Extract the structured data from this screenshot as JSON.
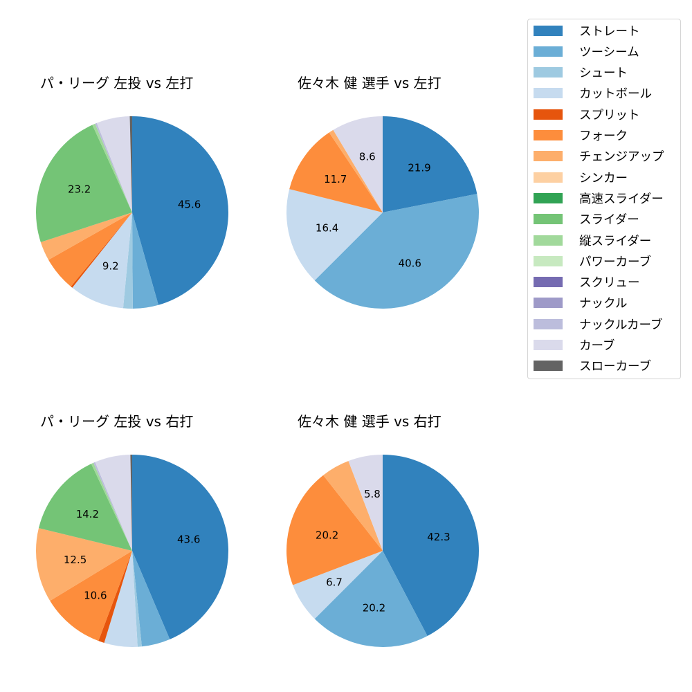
{
  "titles": {
    "c1": "パ・リーグ 左投 vs 左打",
    "c2": "佐々木 健 選手 vs 左打",
    "c3": "パ・リーグ 左投 vs 右打",
    "c4": "佐々木 健 選手 vs 右打"
  },
  "legend": [
    {
      "label": "ストレート",
      "color": "#3182bd"
    },
    {
      "label": "ツーシーム",
      "color": "#6baed6"
    },
    {
      "label": "シュート",
      "color": "#9ecae1"
    },
    {
      "label": "カットボール",
      "color": "#c6dbef"
    },
    {
      "label": "スプリット",
      "color": "#e6550d"
    },
    {
      "label": "フォーク",
      "color": "#fd8d3c"
    },
    {
      "label": "チェンジアップ",
      "color": "#fdae6b"
    },
    {
      "label": "シンカー",
      "color": "#fdd0a2"
    },
    {
      "label": "高速スライダー",
      "color": "#31a354"
    },
    {
      "label": "スライダー",
      "color": "#74c476"
    },
    {
      "label": "縦スライダー",
      "color": "#a1d99b"
    },
    {
      "label": "パワーカーブ",
      "color": "#c7e9c0"
    },
    {
      "label": "スクリュー",
      "color": "#756bb1"
    },
    {
      "label": "ナックル",
      "color": "#9e9ac8"
    },
    {
      "label": "ナックルカーブ",
      "color": "#bcbddc"
    },
    {
      "label": "カーブ",
      "color": "#dadaeb"
    },
    {
      "label": "スローカーブ",
      "color": "#636363"
    }
  ],
  "chart_data": [
    {
      "type": "pie",
      "title": "パ・リーグ 左投 vs 左打",
      "categories": [
        "ストレート",
        "ツーシーム",
        "シュート",
        "カットボール",
        "スプリット",
        "フォーク",
        "チェンジアップ",
        "スライダー",
        "縦スライダー",
        "ナックルカーブ",
        "カーブ",
        "スローカーブ"
      ],
      "values": [
        45.6,
        4.3,
        1.6,
        9.2,
        0.3,
        5.8,
        3.2,
        23.2,
        0.5,
        0.3,
        5.6,
        0.4
      ],
      "labels_shown": [
        "45.6",
        "9.2",
        "23.2"
      ],
      "start_angle": 90,
      "direction": "clockwise"
    },
    {
      "type": "pie",
      "title": "佐々木 健 選手 vs 左打",
      "categories": [
        "ストレート",
        "ツーシーム",
        "カットボール",
        "フォーク",
        "チェンジアップ",
        "カーブ"
      ],
      "values": [
        21.9,
        40.6,
        16.4,
        11.7,
        0.8,
        8.6
      ],
      "labels_shown": [
        "21.9",
        "40.6",
        "16.4",
        "11.7",
        "8.6"
      ],
      "start_angle": 90,
      "direction": "clockwise"
    },
    {
      "type": "pie",
      "title": "パ・リーグ 左投 vs 右打",
      "categories": [
        "ストレート",
        "ツーシーム",
        "シュート",
        "カットボール",
        "スプリット",
        "フォーク",
        "チェンジアップ",
        "スライダー",
        "縦スライダー",
        "ナックルカーブ",
        "カーブ",
        "スローカーブ"
      ],
      "values": [
        43.6,
        4.8,
        0.7,
        5.6,
        1.0,
        10.6,
        12.5,
        14.2,
        0.4,
        0.3,
        6.0,
        0.3
      ],
      "labels_shown": [
        "43.6",
        "10.6",
        "12.5",
        "14.2"
      ],
      "start_angle": 90,
      "direction": "clockwise"
    },
    {
      "type": "pie",
      "title": "佐々木 健 選手 vs 右打",
      "categories": [
        "ストレート",
        "ツーシーム",
        "カットボール",
        "フォーク",
        "チェンジアップ",
        "カーブ"
      ],
      "values": [
        42.3,
        20.2,
        6.7,
        20.2,
        4.8,
        5.8
      ],
      "labels_shown": [
        "42.3",
        "20.2",
        "6.7",
        "20.2",
        "5.8"
      ],
      "start_angle": 90,
      "direction": "clockwise"
    }
  ]
}
